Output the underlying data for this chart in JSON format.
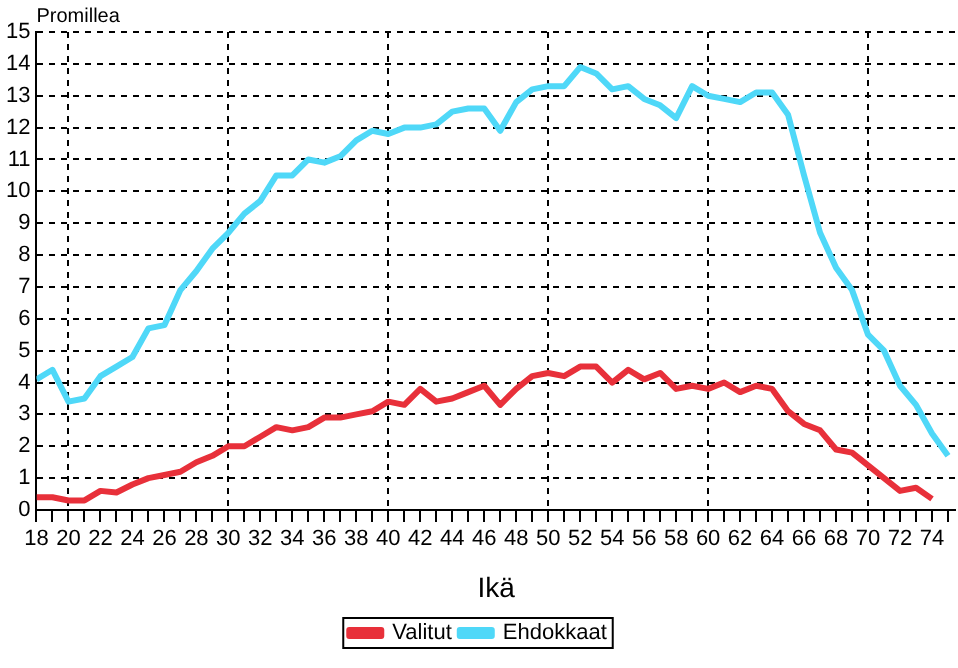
{
  "chart_data": {
    "type": "line",
    "xlabel": "Ikä",
    "ylabel": "Promillea",
    "x": [
      18,
      19,
      20,
      21,
      22,
      23,
      24,
      25,
      26,
      27,
      28,
      29,
      30,
      31,
      32,
      33,
      34,
      35,
      36,
      37,
      38,
      39,
      40,
      41,
      42,
      43,
      44,
      45,
      46,
      47,
      48,
      49,
      50,
      51,
      52,
      53,
      54,
      55,
      56,
      57,
      58,
      59,
      60,
      61,
      62,
      63,
      64,
      65,
      66,
      67,
      68,
      69,
      70,
      71,
      72,
      73,
      74,
      75
    ],
    "series": [
      {
        "name": "Valitut",
        "color": "#e8303a",
        "values": [
          0.4,
          0.4,
          0.3,
          0.3,
          0.6,
          0.55,
          0.8,
          1.0,
          1.1,
          1.2,
          1.5,
          1.7,
          2.0,
          2.0,
          2.3,
          2.6,
          2.5,
          2.6,
          2.9,
          2.9,
          3.0,
          3.1,
          3.4,
          3.3,
          3.8,
          3.4,
          3.5,
          3.7,
          3.9,
          3.3,
          3.8,
          4.2,
          4.3,
          4.2,
          4.5,
          4.5,
          4.0,
          4.4,
          4.1,
          4.3,
          3.8,
          3.9,
          3.8,
          4.0,
          3.7,
          3.9,
          3.8,
          3.1,
          2.7,
          2.5,
          1.9,
          1.8,
          1.4,
          1.0,
          0.6,
          0.7,
          0.35,
          null
        ]
      },
      {
        "name": "Ehdokkaat",
        "color": "#4fd8f8",
        "values": [
          4.1,
          4.4,
          3.4,
          3.5,
          4.2,
          4.5,
          4.8,
          5.7,
          5.8,
          6.9,
          7.5,
          8.2,
          8.7,
          9.3,
          9.7,
          10.5,
          10.5,
          11.0,
          10.9,
          11.1,
          11.6,
          11.9,
          11.8,
          12.0,
          12.0,
          12.1,
          12.5,
          12.6,
          12.6,
          11.9,
          12.8,
          13.2,
          13.3,
          13.3,
          13.9,
          13.7,
          13.2,
          13.3,
          12.9,
          12.7,
          12.3,
          13.3,
          13.0,
          12.9,
          12.8,
          13.1,
          13.1,
          12.4,
          10.5,
          8.7,
          7.6,
          6.9,
          5.5,
          5.0,
          3.9,
          3.3,
          2.4,
          1.7
        ]
      }
    ],
    "xlim": [
      18,
      75.5
    ],
    "xticks": [
      18,
      {
        "value": 19,
        "label": null
      },
      20,
      {
        "value": 21,
        "label": null
      },
      22,
      {
        "value": 23,
        "label": null
      },
      24,
      {
        "value": 25,
        "label": null
      },
      26,
      {
        "value": 27,
        "label": null
      },
      28,
      {
        "value": 29,
        "label": null
      },
      30,
      {
        "value": 31,
        "label": null
      },
      32,
      {
        "value": 33,
        "label": null
      },
      34,
      {
        "value": 35,
        "label": null
      },
      36,
      {
        "value": 37,
        "label": null
      },
      38,
      {
        "value": 39,
        "label": null
      },
      40,
      {
        "value": 41,
        "label": null
      },
      42,
      {
        "value": 43,
        "label": null
      },
      44,
      {
        "value": 45,
        "label": null
      },
      46,
      {
        "value": 47,
        "label": null
      },
      48,
      {
        "value": 49,
        "label": null
      },
      50,
      {
        "value": 51,
        "label": null
      },
      52,
      {
        "value": 53,
        "label": null
      },
      54,
      {
        "value": 55,
        "label": null
      },
      56,
      {
        "value": 57,
        "label": null
      },
      58,
      {
        "value": 59,
        "label": null
      },
      60,
      {
        "value": 61,
        "label": null
      },
      62,
      {
        "value": 63,
        "label": null
      },
      64,
      {
        "value": 65,
        "label": null
      },
      66,
      {
        "value": 67,
        "label": null
      },
      68,
      {
        "value": 69,
        "label": null
      },
      70,
      {
        "value": 71,
        "label": null
      },
      72,
      {
        "value": 73,
        "label": null
      },
      74,
      {
        "value": 75,
        "label": null
      }
    ],
    "ylim": [
      0,
      15
    ],
    "yticks": [
      0,
      1,
      2,
      3,
      4,
      5,
      6,
      7,
      8,
      9,
      10,
      11,
      12,
      13,
      14,
      15
    ],
    "grid": true,
    "legend": "bottom",
    "marker": "none",
    "line_style": "solid"
  }
}
